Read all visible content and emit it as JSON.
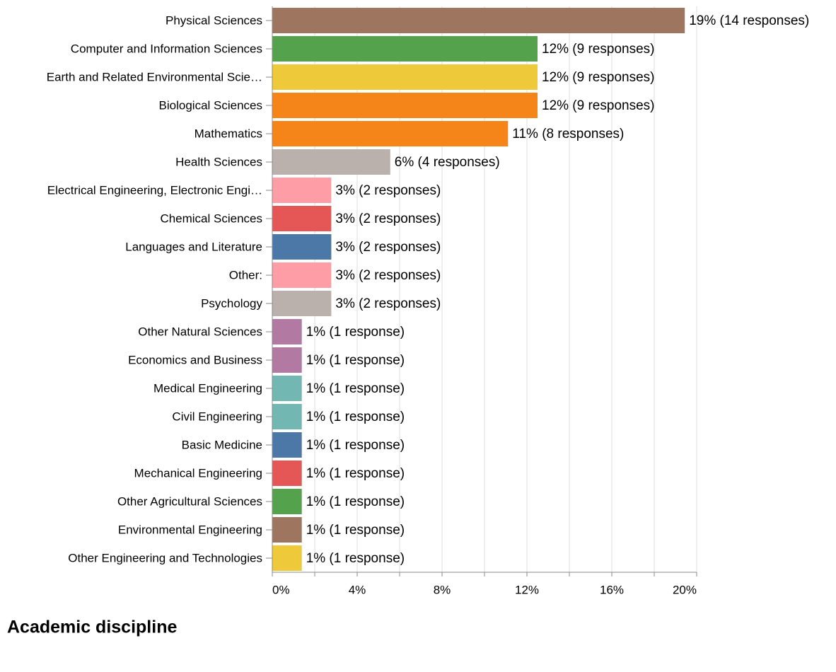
{
  "chart_data": {
    "type": "bar",
    "orientation": "horizontal",
    "title": "Academic discipline",
    "categories": [
      "Physical Sciences",
      "Computer and Information Sciences",
      "Earth and Related Environmental Scie…",
      "Biological Sciences",
      "Mathematics",
      "Health Sciences",
      "Electrical Engineering, Electronic Engi…",
      "Chemical Sciences",
      "Languages and Literature",
      "Other:",
      "Psychology",
      "Other Natural Sciences",
      "Economics and Business",
      "Medical Engineering",
      "Civil Engineering",
      "Basic Medicine",
      "Mechanical Engineering",
      "Other Agricultural Sciences",
      "Environmental Engineering",
      "Other Engineering and Technologies"
    ],
    "values": [
      19.44,
      12.5,
      12.5,
      12.5,
      11.11,
      5.56,
      2.78,
      2.78,
      2.78,
      2.78,
      2.78,
      1.39,
      1.39,
      1.39,
      1.39,
      1.39,
      1.39,
      1.39,
      1.39,
      1.39
    ],
    "value_labels": [
      "19% (14 responses)",
      "12% (9 responses)",
      "12% (9 responses)",
      "12% (9 responses)",
      "11% (8 responses)",
      "6% (4 responses)",
      "3% (2 responses)",
      "3% (2 responses)",
      "3% (2 responses)",
      "3% (2 responses)",
      "3% (2 responses)",
      "1% (1 response)",
      "1% (1 response)",
      "1% (1 response)",
      "1% (1 response)",
      "1% (1 response)",
      "1% (1 response)",
      "1% (1 response)",
      "1% (1 response)",
      "1% (1 response)"
    ],
    "colors": [
      "#9e765f",
      "#54a24b",
      "#eeca3b",
      "#f58518",
      "#f58518",
      "#bab0ac",
      "#ff9da6",
      "#e45756",
      "#4c78a8",
      "#ff9da6",
      "#bab0ac",
      "#b279a2",
      "#b279a2",
      "#72b7b2",
      "#72b7b2",
      "#4c78a8",
      "#e45756",
      "#54a24b",
      "#9e765f",
      "#eeca3b"
    ],
    "xlim": [
      0,
      20
    ],
    "xticks": [
      {
        "value": 0,
        "label": "0%"
      },
      {
        "value": 4,
        "label": "4%"
      },
      {
        "value": 8,
        "label": "8%"
      },
      {
        "value": 12,
        "label": "12%"
      },
      {
        "value": 16,
        "label": "16%"
      },
      {
        "value": 20,
        "label": "20%"
      }
    ],
    "xminorticks": [
      2,
      6,
      10,
      14,
      18
    ],
    "grid": true
  }
}
